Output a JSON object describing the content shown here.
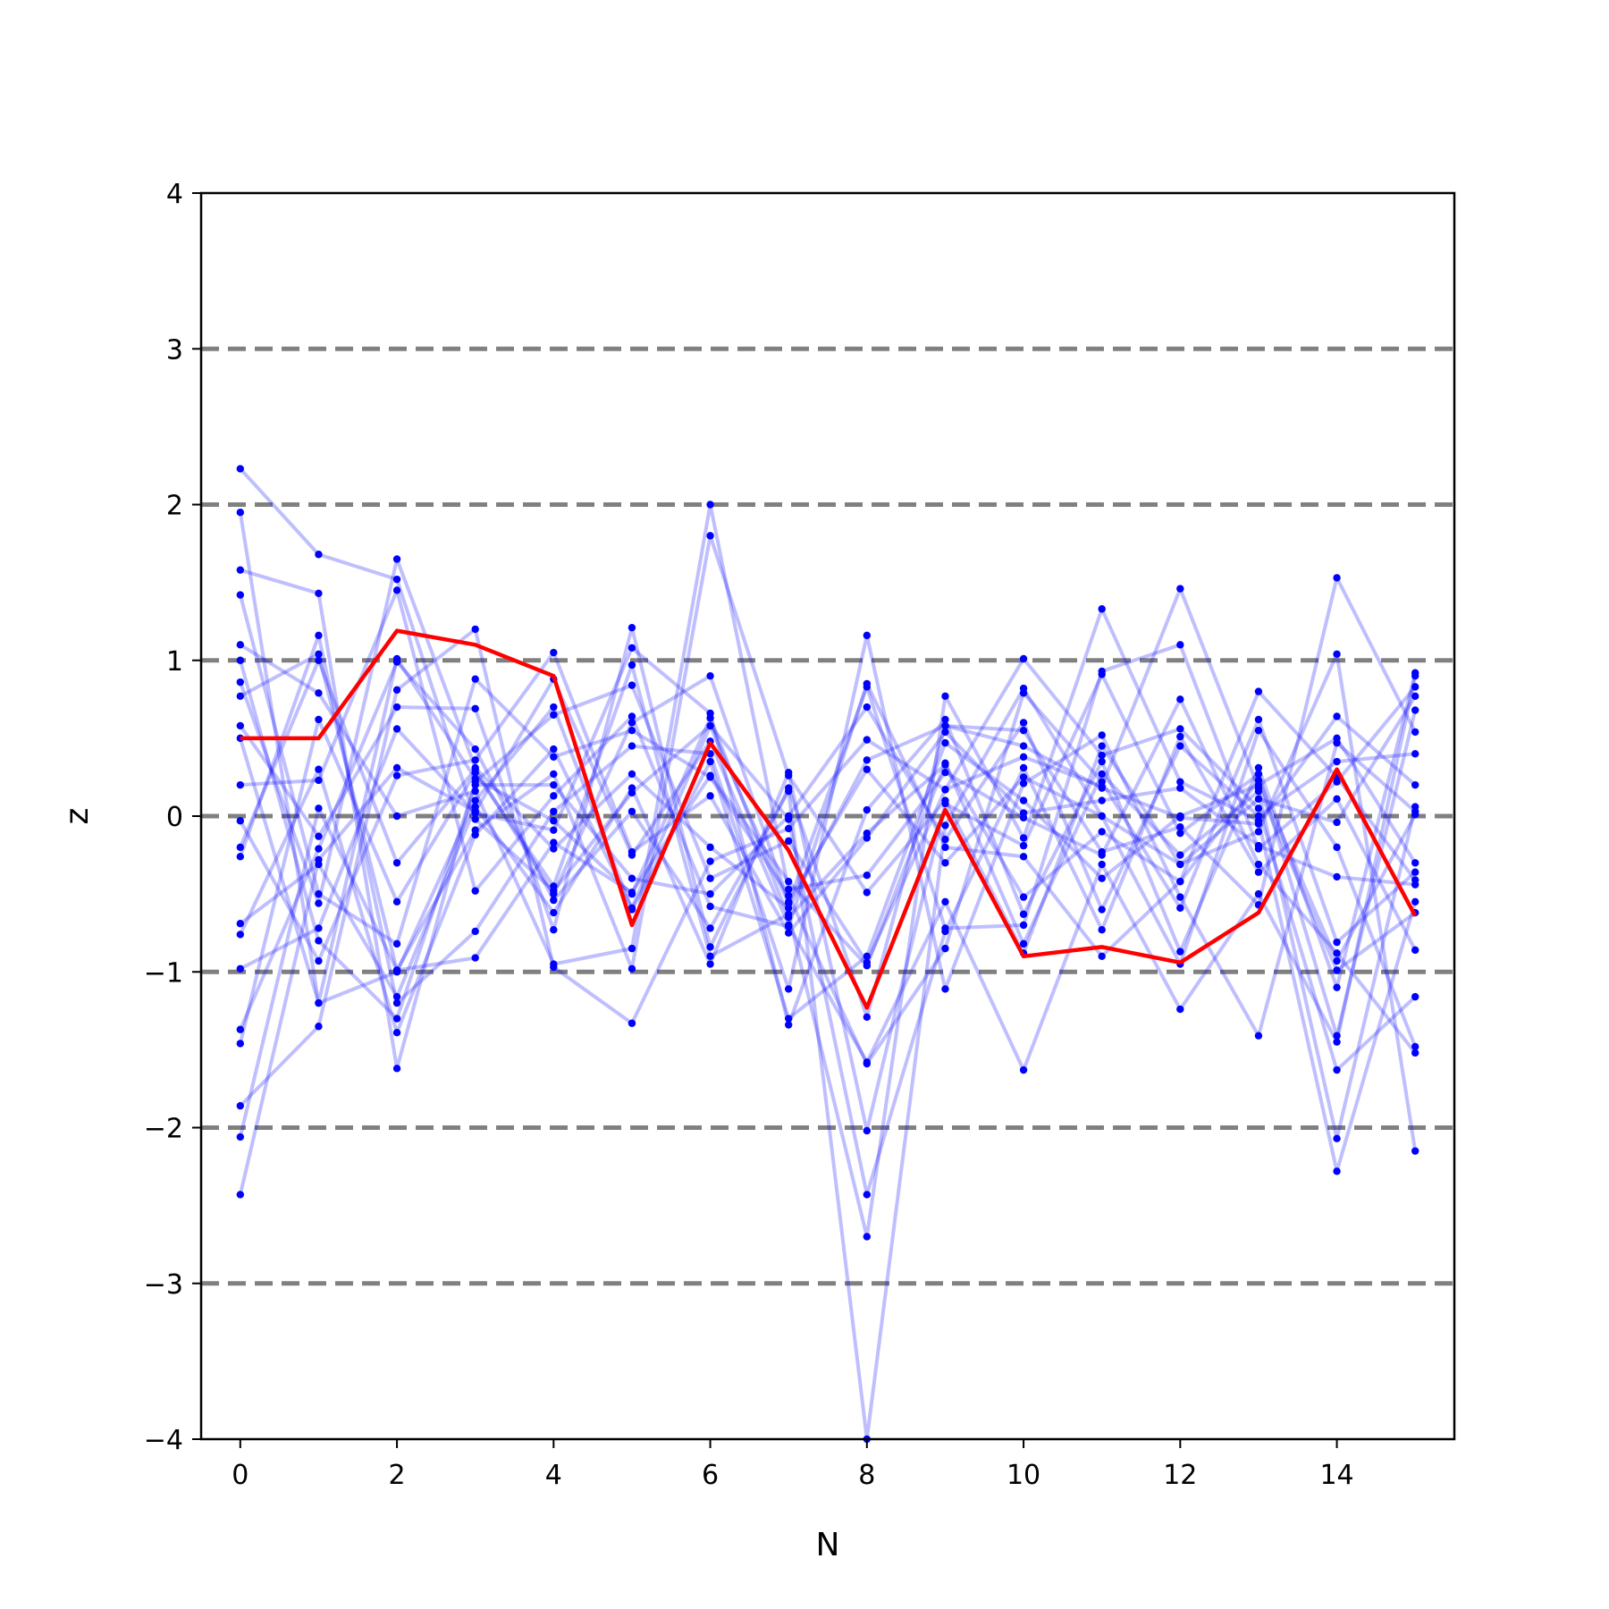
{
  "chart_data": {
    "type": "line",
    "title": "",
    "xlabel": "N",
    "ylabel": "z",
    "xlim": [
      -0.5,
      15.5
    ],
    "ylim": [
      -4,
      4
    ],
    "xticks": [
      0,
      2,
      4,
      6,
      8,
      10,
      12,
      14
    ],
    "yticks": [
      -4,
      -3,
      -2,
      -1,
      0,
      1,
      2,
      3,
      4
    ],
    "xtick_labels": [
      "0",
      "2",
      "4",
      "6",
      "8",
      "10",
      "12",
      "14"
    ],
    "ytick_labels": [
      "−4",
      "−3",
      "−2",
      "−1",
      "0",
      "1",
      "2",
      "3",
      "4"
    ],
    "reference_lines_y": [
      -3,
      -2,
      -1,
      0,
      1,
      2,
      3
    ],
    "reference_line_color": "#808080",
    "x": [
      0,
      1,
      2,
      3,
      4,
      5,
      6,
      7,
      8,
      9,
      10,
      11,
      12,
      13,
      14,
      15
    ],
    "highlight_series": {
      "color": "#ff0000",
      "values": [
        0.5,
        0.5,
        1.19,
        1.1,
        0.9,
        -0.7,
        0.47,
        -0.22,
        -1.23,
        0.04,
        -0.9,
        -0.84,
        -0.94,
        -0.62,
        0.3,
        -0.64
      ]
    },
    "background_series_color": "#0000ff",
    "background_series": [
      [
        2.23,
        1.68,
        1.52,
        -0.02,
        -0.48,
        0.15,
        0.58,
        -0.56,
        0.83,
        -0.72,
        -0.7,
        0.93,
        1.1,
        -0.21,
        0.22,
        0.83
      ],
      [
        1.95,
        -1.2,
        1.01,
        0.24,
        -0.03,
        -0.5,
        0.63,
        -0.65,
        -0.11,
        0.33,
        -0.52,
        -0.1,
        -0.42,
        0.8,
        0.25,
        -0.41
      ],
      [
        1.58,
        1.43,
        -1.62,
        0.22,
        0.65,
        0.84,
        -0.4,
        -0.16,
        -0.94,
        0.17,
        0.38,
        0.19,
        1.46,
        0.18,
        -0.99,
        -0.62
      ],
      [
        1.42,
        -0.5,
        -0.82,
        0.88,
        0.38,
        0.55,
        0.25,
        -0.51,
        -1.59,
        -0.85,
        0.79,
        0.22,
        -0.59,
        0.62,
        -0.81,
        -0.36
      ],
      [
        1.1,
        0.79,
        0.0,
        0.16,
        -0.95,
        -0.85,
        2.0,
        -0.47,
        -0.38,
        0.28,
        -0.01,
        -0.25,
        0.75,
        -0.31,
        -0.88,
        -1.52
      ],
      [
        0.86,
        -0.56,
        1.65,
        0.31,
        -0.21,
        0.27,
        -0.2,
        -0.59,
        0.36,
        0.58,
        0.45,
        0.18,
        -0.01,
        -0.05,
        0.64,
        0.2
      ],
      [
        0.77,
        1.04,
        -0.99,
        -0.09,
        0.27,
        -0.98,
        1.8,
        0.26,
        -0.49,
        0.1,
        -0.88,
        0.45,
        -0.31,
        0.11,
        -0.04,
        0.77
      ],
      [
        0.58,
        -0.13,
        0.7,
        0.69,
        -0.73,
        1.21,
        -0.84,
        0.18,
        -1.29,
        0.58,
        0.55,
        -0.23,
        -0.07,
        -0.57,
        1.53,
        0.54
      ],
      [
        0.2,
        0.23,
        1.45,
        -0.48,
        0.13,
        0.64,
        -0.58,
        -0.71,
        0.85,
        -0.2,
        -0.26,
        -0.9,
        -0.42,
        0.23,
        -0.93,
        0.01
      ],
      [
        -0.03,
        -0.93,
        0.26,
        0.36,
        1.05,
        -0.23,
        0.13,
        -0.75,
        -0.14,
        0.54,
        0.02,
        0.1,
        0.18,
        -0.19,
        -0.39,
        -0.44
      ],
      [
        -0.26,
        1.16,
        -1.2,
        -0.74,
        0.03,
        0.45,
        0.4,
        -1.11,
        1.16,
        -1.11,
        0.21,
        0.52,
        -0.52,
        -1.41,
        0.47,
        0.03
      ],
      [
        -0.69,
        -0.31,
        -1.16,
        0.06,
        -0.62,
        0.18,
        -0.95,
        0.28,
        -2.02,
        0.08,
        -0.19,
        0.91,
        -0.11,
        0.27,
        -1.41,
        0.68
      ],
      [
        -0.76,
        0.3,
        -1.39,
        -0.12,
        0.43,
        -0.59,
        0.58,
        -0.02,
        -2.43,
        -0.74,
        0.31,
        -0.73,
        0.51,
        -0.36,
        0.11,
        -0.86
      ],
      [
        -0.98,
        -0.72,
        0.56,
        0.02,
        -0.09,
        1.08,
        0.66,
        -1.34,
        0.04,
        0.62,
        -0.63,
        0.35,
        -0.87,
        0.31,
        -1.1,
        0.92
      ],
      [
        -1.37,
        -0.21,
        0.99,
        0.43,
        -0.54,
        0.03,
        -0.72,
        0.16,
        -4.0,
        -0.06,
        0.82,
        0.0,
        -0.31,
        -0.1,
        1.04,
        -2.15
      ],
      [
        -1.46,
        0.62,
        -0.55,
        0.28,
        -0.45,
        0.97,
        -0.9,
        -0.63,
        -2.7,
        0.77,
        -0.14,
        1.33,
        0.22,
        -0.03,
        -2.28,
        -0.55
      ],
      [
        -1.86,
        -1.35,
        0.81,
        1.2,
        -0.97,
        -1.33,
        -0.29,
        -0.08,
        0.49,
        0.17,
        1.01,
        0.39,
        0.56,
        0.05,
        -1.63,
        -1.16
      ],
      [
        -2.06,
        0.05,
        -0.99,
        -0.91,
        -0.17,
        -0.49,
        0.26,
        -0.42,
        -0.96,
        0.34,
        -0.82,
        0.27,
        -0.25,
        0.16,
        -2.07,
        0.06
      ],
      [
        -2.43,
        -0.28,
        0.31,
        0.03,
        0.88,
        -0.25,
        0.48,
        -0.7,
        -1.58,
        -0.55,
        -1.63,
        -0.31,
        -1.24,
        -0.5,
        -1.45,
        0.9
      ],
      [
        0.5,
        -1.2,
        -1.0,
        0.1,
        0.7,
        -0.6,
        0.35,
        -1.3,
        -0.9,
        0.47,
        0.1,
        -0.4,
        0.0,
        0.2,
        0.5,
        -0.3
      ],
      [
        -0.2,
        1.0,
        -0.3,
        0.3,
        -0.5,
        0.6,
        0.9,
        -0.55,
        0.3,
        -0.3,
        0.25,
        0.0,
        -0.95,
        0.55,
        -0.2,
        -1.48
      ],
      [
        1.0,
        -0.8,
        -1.3,
        0.2,
        0.2,
        -0.4,
        -0.5,
        0.0,
        0.7,
        -0.15,
        0.6,
        -0.6,
        0.45,
        0.0,
        0.35,
        0.4
      ]
    ]
  }
}
